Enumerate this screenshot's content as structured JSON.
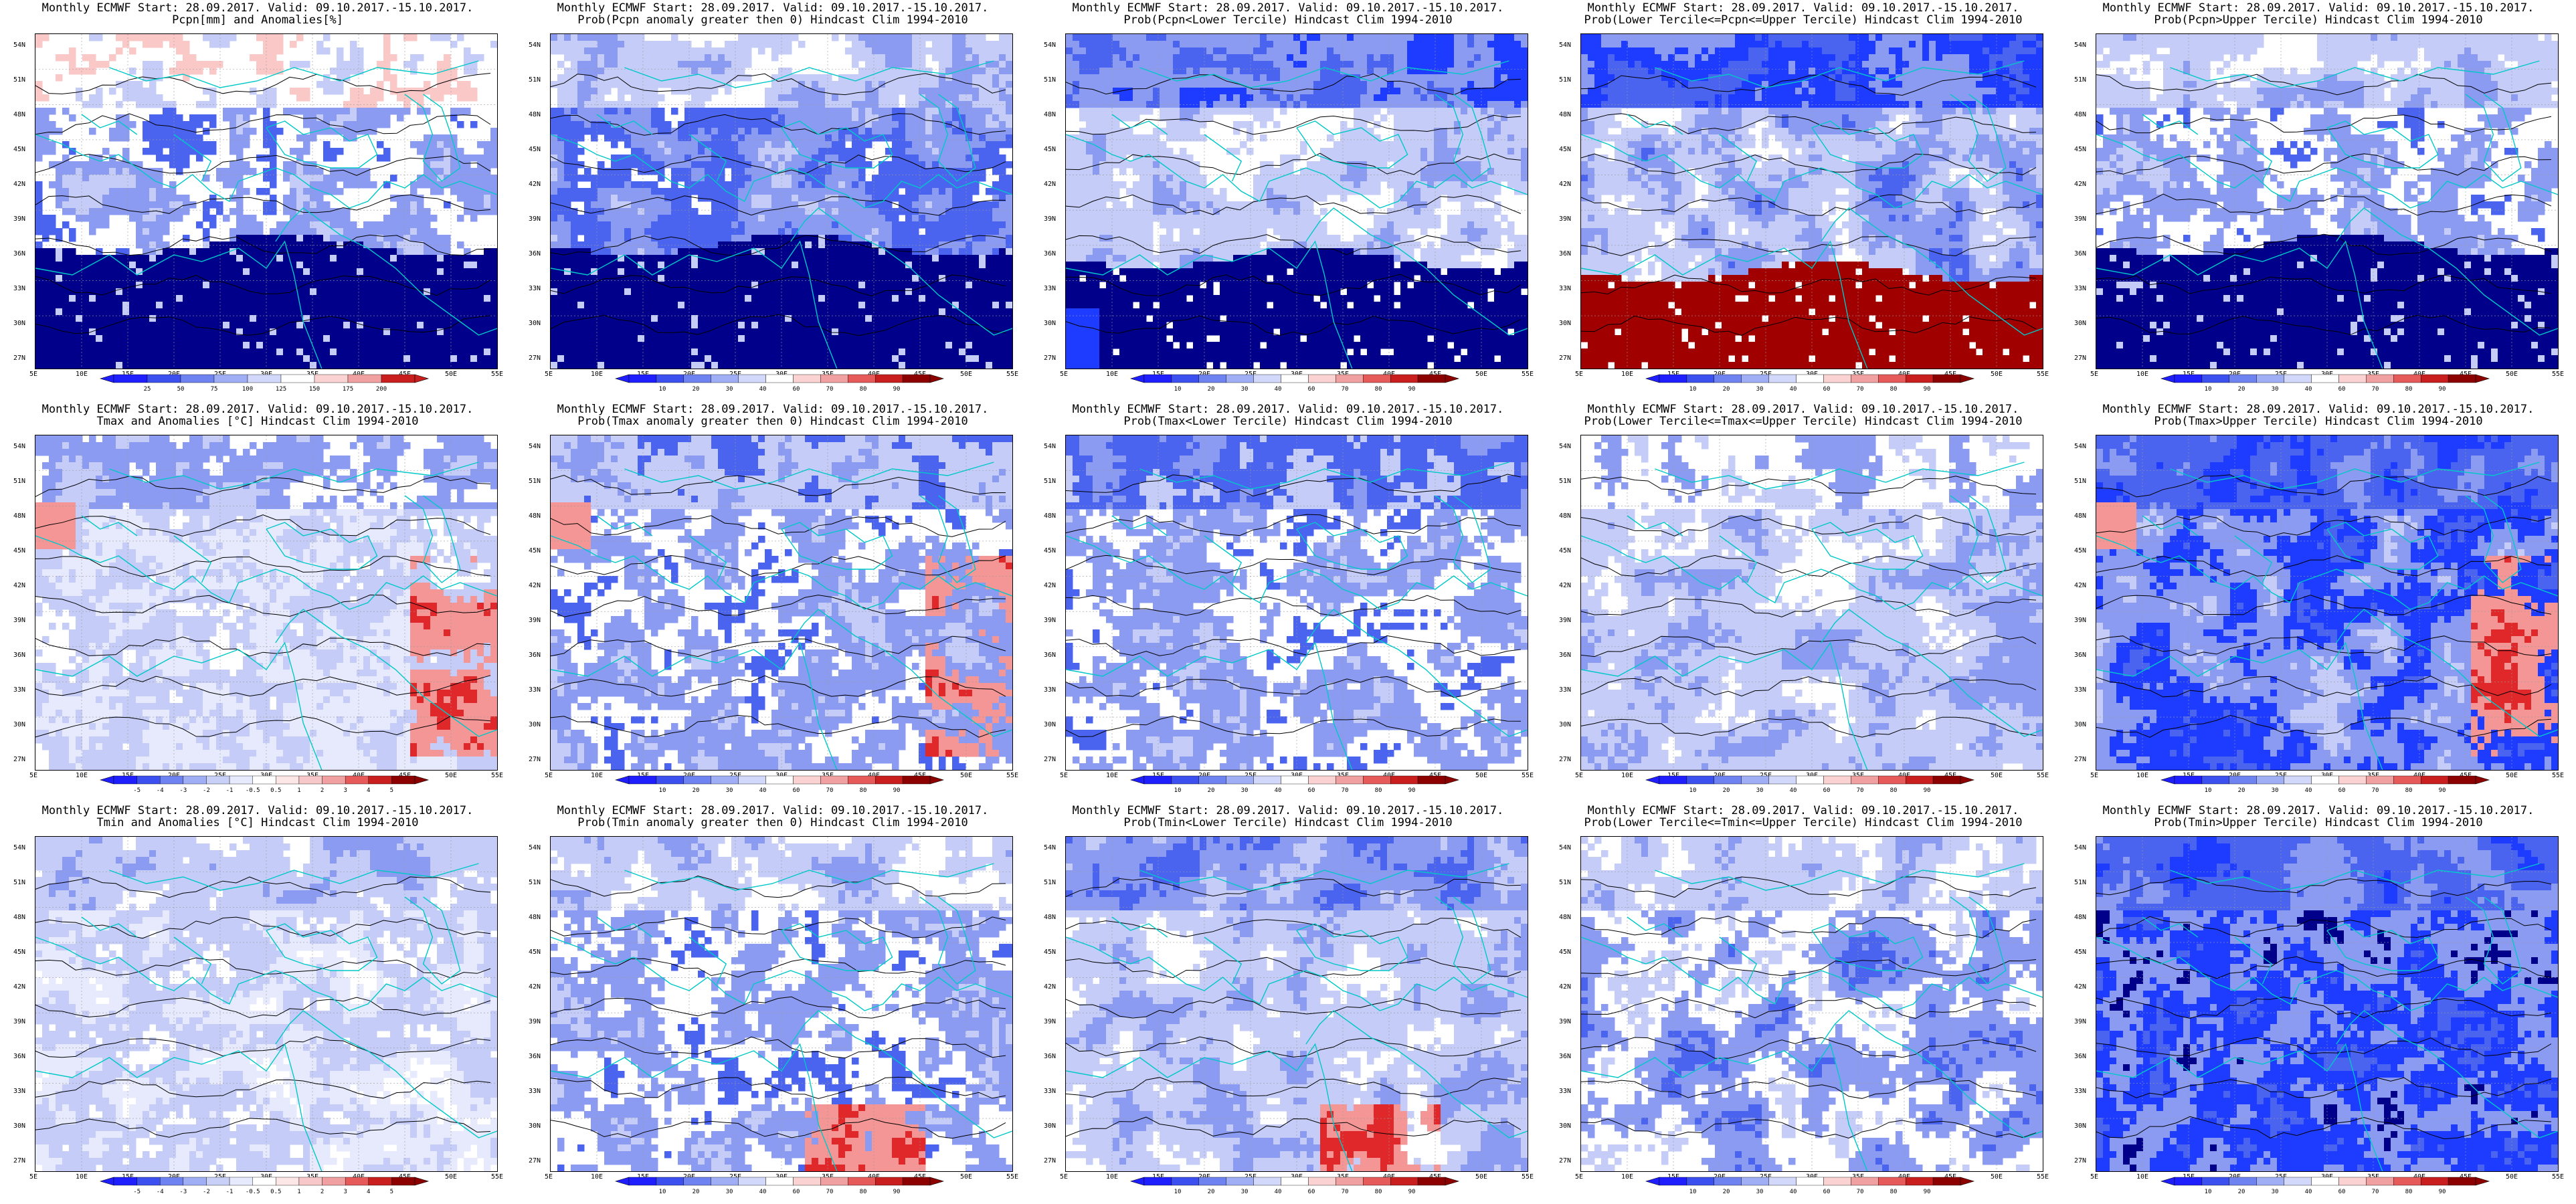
{
  "panels": [
    {
      "title1": "Monthly ECMWF Start: 28.09.2017. Valid: 09.10.2017.-15.10.2017.",
      "title2": "Pcpn[mm] and Anomalies[%]",
      "title3": "",
      "palette": "pcpn_anom",
      "cbar_labels": [
        "25",
        "50",
        "75",
        "100",
        "125",
        "150",
        "175",
        "200"
      ],
      "map": "pcpn"
    },
    {
      "title1": "Monthly ECMWF Start: 28.09.2017. Valid: 09.10.2017.-15.10.2017.",
      "title2": "Prob(Pcpn anomaly greater then 0) Hindcast Clim 1994-2010",
      "title3": "",
      "palette": "prob",
      "cbar_labels": [
        "10",
        "20",
        "30",
        "40",
        "60",
        "70",
        "80",
        "90"
      ],
      "map": "pcpn_prob"
    },
    {
      "title1": "Monthly ECMWF Start: 28.09.2017. Valid: 09.10.2017.-15.10.2017.",
      "title2": "Prob(Pcpn<Lower Tercile) Hindcast Clim 1994-2010",
      "title3": "",
      "palette": "prob",
      "cbar_labels": [
        "10",
        "20",
        "30",
        "40",
        "60",
        "70",
        "80",
        "90"
      ],
      "map": "pcpn_lower"
    },
    {
      "title1": "Monthly ECMWF Start: 28.09.2017. Valid: 09.10.2017.-15.10.2017.",
      "title2": "Prob(Lower Tercile<=Pcpn<=Upper Tercile) Hindcast Clim 1994-2010",
      "title3": "",
      "palette": "prob",
      "cbar_labels": [
        "10",
        "20",
        "30",
        "40",
        "60",
        "70",
        "80",
        "90"
      ],
      "map": "pcpn_middle"
    },
    {
      "title1": "Monthly ECMWF Start: 28.09.2017. Valid: 09.10.2017.-15.10.2017.",
      "title2": "Prob(Pcpn>Upper Tercile) Hindcast Clim 1994-2010",
      "title3": "",
      "palette": "prob",
      "cbar_labels": [
        "10",
        "20",
        "30",
        "40",
        "60",
        "70",
        "80",
        "90"
      ],
      "map": "pcpn_upper"
    },
    {
      "title1": "Monthly ECMWF Start: 28.09.2017. Valid: 09.10.2017.-15.10.2017.",
      "title2": "Tmax and Anomalies [°C] Hindcast Clim 1994-2010",
      "title3": "",
      "palette": "t_anom",
      "cbar_labels": [
        "-5",
        "-4",
        "-3",
        "-2",
        "-1",
        "-0.5",
        "0.5",
        "1",
        "2",
        "3",
        "4",
        "5"
      ],
      "map": "tmax"
    },
    {
      "title1": "Monthly ECMWF Start: 28.09.2017. Valid: 09.10.2017.-15.10.2017.",
      "title2": "Prob(Tmax anomaly greater then 0) Hindcast Clim 1994-2010",
      "title3": "",
      "palette": "prob",
      "cbar_labels": [
        "10",
        "20",
        "30",
        "40",
        "60",
        "70",
        "80",
        "90"
      ],
      "map": "tmax_prob"
    },
    {
      "title1": "Monthly ECMWF Start: 28.09.2017. Valid: 09.10.2017.-15.10.2017.",
      "title2": "Prob(Tmax<Lower Tercile) Hindcast Clim 1994-2010",
      "title3": "",
      "palette": "prob",
      "cbar_labels": [
        "10",
        "20",
        "30",
        "40",
        "60",
        "70",
        "80",
        "90"
      ],
      "map": "tmax_lower"
    },
    {
      "title1": "Monthly ECMWF Start: 28.09.2017. Valid: 09.10.2017.-15.10.2017.",
      "title2": "Prob(Lower Tercile<=Tmax<=Upper Tercile) Hindcast Clim 1994-2010",
      "title3": "",
      "palette": "prob",
      "cbar_labels": [
        "10",
        "20",
        "30",
        "40",
        "60",
        "70",
        "80",
        "90"
      ],
      "map": "tmax_middle"
    },
    {
      "title1": "Monthly ECMWF Start: 28.09.2017. Valid: 09.10.2017.-15.10.2017.",
      "title2": "Prob(Tmax>Upper Tercile) Hindcast Clim 1994-2010",
      "title3": "",
      "palette": "prob",
      "cbar_labels": [
        "10",
        "20",
        "30",
        "40",
        "60",
        "70",
        "80",
        "90"
      ],
      "map": "tmax_upper"
    },
    {
      "title1": "Monthly ECMWF Start: 28.09.2017. Valid: 09.10.2017.-15.10.2017.",
      "title2": "Tmin and Anomalies [°C] Hindcast Clim 1994-2010",
      "title3": "",
      "palette": "t_anom",
      "cbar_labels": [
        "-5",
        "-4",
        "-3",
        "-2",
        "-1",
        "-0.5",
        "0.5",
        "1",
        "2",
        "3",
        "4",
        "5"
      ],
      "map": "tmin"
    },
    {
      "title1": "Monthly ECMWF Start: 28.09.2017. Valid: 09.10.2017.-15.10.2017.",
      "title2": "Prob(Tmin anomaly greater then 0) Hindcast Clim 1994-2010",
      "title3": "",
      "palette": "prob",
      "cbar_labels": [
        "10",
        "20",
        "30",
        "40",
        "60",
        "70",
        "80",
        "90"
      ],
      "map": "tmin_prob"
    },
    {
      "title1": "Monthly ECMWF Start: 28.09.2017. Valid: 09.10.2017.-15.10.2017.",
      "title2": "Prob(Tmin<Lower Tercile) Hindcast Clim 1994-2010",
      "title3": "",
      "palette": "prob",
      "cbar_labels": [
        "10",
        "20",
        "30",
        "40",
        "60",
        "70",
        "80",
        "90"
      ],
      "map": "tmin_lower"
    },
    {
      "title1": "Monthly ECMWF Start: 28.09.2017. Valid: 09.10.2017.-15.10.2017.",
      "title2": "Prob(Lower Tercile<=Tmin<=Upper Tercile) Hindcast Clim 1994-2010",
      "title3": "",
      "palette": "prob",
      "cbar_labels": [
        "10",
        "20",
        "30",
        "40",
        "60",
        "70",
        "80",
        "90"
      ],
      "map": "tmin_middle"
    },
    {
      "title1": "Monthly ECMWF Start: 28.09.2017. Valid: 09.10.2017.-15.10.2017.",
      "title2": "Prob(Tmin>Upper Tercile) Hindcast Clim 1994-2010",
      "title3": "",
      "palette": "prob",
      "cbar_labels": [
        "10",
        "20",
        "30",
        "40",
        "60",
        "70",
        "80",
        "90"
      ],
      "map": "tmin_upper"
    }
  ],
  "lat_labels": [
    "54N",
    "51N",
    "48N",
    "45N",
    "42N",
    "39N",
    "36N",
    "33N",
    "30N",
    "27N"
  ],
  "lon_labels": [
    "5E",
    "10E",
    "15E",
    "20E",
    "25E",
    "30E",
    "35E",
    "40E",
    "45E",
    "50E",
    "55E"
  ],
  "colors": {
    "deep_blue": "#00008b",
    "blue": "#1e3cff",
    "mid_blue": "#4b64f0",
    "light_blue": "#8c9bf2",
    "pale_blue": "#c4ccf7",
    "white": "#ffffff",
    "pale_red": "#fbc8c8",
    "light_red": "#f49696",
    "red": "#e0282a",
    "dark_red": "#a00000",
    "coast": "#00c8c8",
    "contour": "#000000"
  },
  "chart_data": [
    {
      "type": "heatmap",
      "title": "Pcpn[mm] and Anomalies[%]",
      "xlim": [
        5,
        55
      ],
      "ylim": [
        25,
        55
      ],
      "legend": [
        "25",
        "50",
        "75",
        "100",
        "125",
        "150",
        "175",
        "200"
      ]
    },
    {
      "type": "heatmap",
      "title": "Prob(Pcpn anomaly greater then 0) Hindcast Clim 1994-2010",
      "xlim": [
        5,
        55
      ],
      "ylim": [
        25,
        55
      ],
      "legend": [
        "10",
        "20",
        "30",
        "40",
        "60",
        "70",
        "80",
        "90"
      ]
    },
    {
      "type": "heatmap",
      "title": "Prob(Pcpn<Lower Tercile) Hindcast Clim 1994-2010",
      "xlim": [
        5,
        55
      ],
      "ylim": [
        25,
        55
      ],
      "legend": [
        "10",
        "20",
        "30",
        "40",
        "60",
        "70",
        "80",
        "90"
      ]
    },
    {
      "type": "heatmap",
      "title": "Prob(Lower Tercile<=Pcpn<=Upper Tercile) Hindcast Clim 1994-2010",
      "xlim": [
        5,
        55
      ],
      "ylim": [
        25,
        55
      ],
      "legend": [
        "10",
        "20",
        "30",
        "40",
        "60",
        "70",
        "80",
        "90"
      ]
    },
    {
      "type": "heatmap",
      "title": "Prob(Pcpn>Upper Tercile) Hindcast Clim 1994-2010",
      "xlim": [
        5,
        55
      ],
      "ylim": [
        25,
        55
      ],
      "legend": [
        "10",
        "20",
        "30",
        "40",
        "60",
        "70",
        "80",
        "90"
      ]
    },
    {
      "type": "heatmap",
      "title": "Tmax and Anomalies [°C] Hindcast Clim 1994-2010",
      "xlim": [
        5,
        55
      ],
      "ylim": [
        25,
        55
      ],
      "legend": [
        "-5",
        "-4",
        "-3",
        "-2",
        "-1",
        "-0.5",
        "0.5",
        "1",
        "2",
        "3",
        "4",
        "5"
      ]
    },
    {
      "type": "heatmap",
      "title": "Prob(Tmax anomaly greater then 0) Hindcast Clim 1994-2010",
      "xlim": [
        5,
        55
      ],
      "ylim": [
        25,
        55
      ],
      "legend": [
        "10",
        "20",
        "30",
        "40",
        "60",
        "70",
        "80",
        "90"
      ]
    },
    {
      "type": "heatmap",
      "title": "Prob(Tmax<Lower Tercile) Hindcast Clim 1994-2010",
      "xlim": [
        5,
        55
      ],
      "ylim": [
        25,
        55
      ],
      "legend": [
        "10",
        "20",
        "30",
        "40",
        "60",
        "70",
        "80",
        "90"
      ]
    },
    {
      "type": "heatmap",
      "title": "Prob(Lower Tercile<=Tmax<=Upper Tercile) Hindcast Clim 1994-2010",
      "xlim": [
        5,
        55
      ],
      "ylim": [
        25,
        55
      ],
      "legend": [
        "10",
        "20",
        "30",
        "40",
        "60",
        "70",
        "80",
        "90"
      ]
    },
    {
      "type": "heatmap",
      "title": "Prob(Tmax>Upper Tercile) Hindcast Clim 1994-2010",
      "xlim": [
        5,
        55
      ],
      "ylim": [
        25,
        55
      ],
      "legend": [
        "10",
        "20",
        "30",
        "40",
        "60",
        "70",
        "80",
        "90"
      ]
    },
    {
      "type": "heatmap",
      "title": "Tmin and Anomalies [°C] Hindcast Clim 1994-2010",
      "xlim": [
        5,
        55
      ],
      "ylim": [
        25,
        55
      ],
      "legend": [
        "-5",
        "-4",
        "-3",
        "-2",
        "-1",
        "-0.5",
        "0.5",
        "1",
        "2",
        "3",
        "4",
        "5"
      ]
    },
    {
      "type": "heatmap",
      "title": "Prob(Tmin anomaly greater then 0) Hindcast Clim 1994-2010",
      "xlim": [
        5,
        55
      ],
      "ylim": [
        25,
        55
      ],
      "legend": [
        "10",
        "20",
        "30",
        "40",
        "60",
        "70",
        "80",
        "90"
      ]
    },
    {
      "type": "heatmap",
      "title": "Prob(Tmin<Lower Tercile) Hindcast Clim 1994-2010",
      "xlim": [
        5,
        55
      ],
      "ylim": [
        25,
        55
      ],
      "legend": [
        "10",
        "20",
        "30",
        "40",
        "60",
        "70",
        "80",
        "90"
      ]
    },
    {
      "type": "heatmap",
      "title": "Prob(Lower Tercile<=Tmin<=Upper Tercile) Hindcast Clim 1994-2010",
      "xlim": [
        5,
        55
      ],
      "ylim": [
        25,
        55
      ],
      "legend": [
        "10",
        "20",
        "30",
        "40",
        "60",
        "70",
        "80",
        "90"
      ]
    },
    {
      "type": "heatmap",
      "title": "Prob(Tmin>Upper Tercile) Hindcast Clim 1994-2010",
      "xlim": [
        5,
        55
      ],
      "ylim": [
        25,
        55
      ],
      "legend": [
        "10",
        "20",
        "30",
        "40",
        "60",
        "70",
        "80",
        "90"
      ]
    }
  ]
}
